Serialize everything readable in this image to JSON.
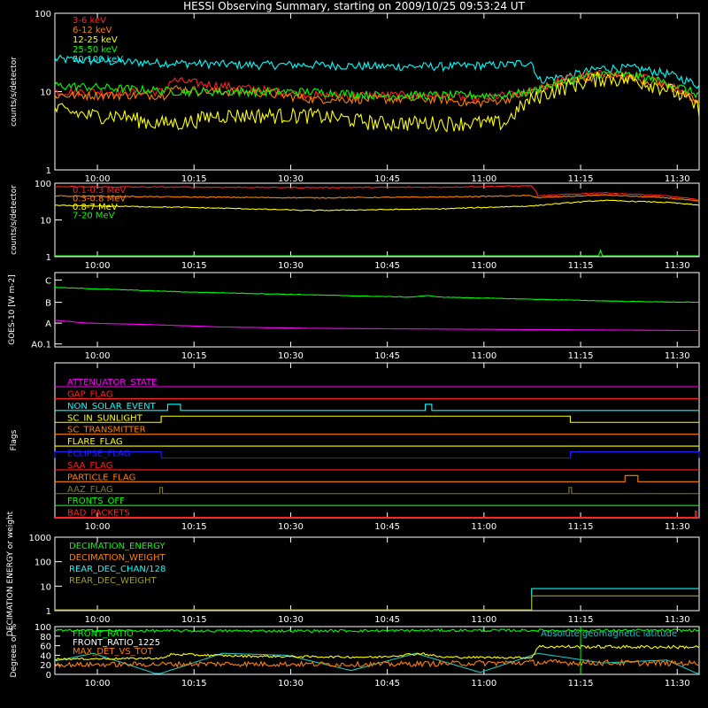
{
  "title": "HESSI Observing Summary, starting on 2009/10/25 09:53:24 UT",
  "time_ticks": [
    "10:00",
    "10:15",
    "10:30",
    "10:45",
    "11:00",
    "11:15",
    "11:30"
  ],
  "chart_data": [
    {
      "type": "line",
      "ylabel": "counts/s/detector",
      "yscale": "log",
      "ylim": [
        1,
        100
      ],
      "yticks": [
        "1",
        "10",
        "100"
      ],
      "x_unit": "minutes since 09:53:24 UT",
      "xlim": [
        0,
        100
      ],
      "series": [
        {
          "name": "3-6 keV",
          "color": "#ff2020",
          "x": [
            0,
            8,
            17,
            18,
            25,
            30,
            40,
            50,
            60,
            65,
            70,
            74,
            80,
            85,
            90,
            95,
            100
          ],
          "y": [
            10,
            10,
            10,
            14,
            12,
            11,
            9,
            9,
            9,
            8,
            9,
            10,
            15,
            17,
            16,
            13,
            7
          ]
        },
        {
          "name": "6-12 keV",
          "color": "#ff8000",
          "x": [
            0,
            8,
            17,
            18,
            25,
            30,
            40,
            50,
            60,
            65,
            70,
            74,
            80,
            85,
            90,
            95,
            100
          ],
          "y": [
            9,
            9,
            9,
            11,
            10,
            10,
            8,
            8,
            8,
            7,
            8,
            10,
            14,
            16,
            15,
            12,
            7
          ]
        },
        {
          "name": "12-25 keV",
          "color": "#ffff00",
          "x": [
            0,
            5,
            10,
            15,
            20,
            25,
            30,
            40,
            50,
            55,
            60,
            65,
            70,
            74,
            80,
            85,
            90,
            95,
            100
          ],
          "y": [
            6,
            5,
            5,
            4,
            4,
            5,
            5,
            5,
            4,
            4,
            4,
            4,
            4,
            8,
            12,
            15,
            14,
            11,
            6
          ]
        },
        {
          "name": "25-50 keV",
          "color": "#00ff00",
          "x": [
            0,
            10,
            20,
            30,
            40,
            50,
            60,
            70,
            74,
            80,
            85,
            90,
            95,
            100
          ],
          "y": [
            12,
            11,
            10,
            10,
            10,
            9,
            9,
            9,
            10,
            14,
            17,
            16,
            13,
            9
          ]
        },
        {
          "name": "50-100 keV",
          "color": "#00ffff",
          "x": [
            0,
            10,
            20,
            30,
            40,
            50,
            60,
            70,
            74,
            75,
            80,
            85,
            90,
            95,
            100
          ],
          "y": [
            26,
            24,
            23,
            22,
            22,
            21,
            21,
            22,
            24,
            14,
            16,
            20,
            20,
            17,
            12
          ]
        }
      ]
    },
    {
      "type": "line",
      "ylabel": "counts/s/detector",
      "yscale": "log",
      "ylim": [
        1,
        100
      ],
      "yticks": [
        "1",
        "10",
        "100"
      ],
      "x_unit": "minutes since 09:53:24 UT",
      "xlim": [
        0,
        100
      ],
      "series": [
        {
          "name": "0.1-0.3 MeV",
          "color": "#ff2020",
          "x": [
            0,
            20,
            40,
            60,
            74,
            75,
            85,
            95,
            100
          ],
          "y": [
            80,
            78,
            76,
            78,
            85,
            45,
            55,
            45,
            35
          ]
        },
        {
          "name": "0.3-0.8 MeV",
          "color": "#ff8000",
          "x": [
            0,
            20,
            40,
            60,
            74,
            75,
            85,
            95,
            100
          ],
          "y": [
            45,
            42,
            40,
            42,
            46,
            40,
            48,
            40,
            32
          ]
        },
        {
          "name": "0.8-7 MeV",
          "color": "#ffff00",
          "x": [
            0,
            20,
            40,
            60,
            74,
            85,
            95,
            100
          ],
          "y": [
            25,
            22,
            18,
            20,
            24,
            34,
            30,
            25
          ]
        },
        {
          "name": "7-20 MeV",
          "color": "#00ff00",
          "x": [
            0,
            84.5,
            84.6,
            84.8,
            85,
            100
          ],
          "y": [
            1,
            1,
            1.8,
            1,
            1,
            1
          ]
        }
      ]
    },
    {
      "type": "line",
      "ylabel": "GOES-10 [W m-2]",
      "yticks": [
        "A0.1",
        "A",
        "B",
        "C"
      ],
      "x_unit": "minutes since 09:53:24 UT",
      "xlim": [
        0,
        100
      ],
      "series": [
        {
          "color": "#00ff00",
          "x": [
            0,
            20,
            40,
            55,
            58,
            60,
            75,
            90,
            100
          ],
          "y": [
            0.8,
            0.74,
            0.7,
            0.67,
            0.69,
            0.67,
            0.64,
            0.61,
            0.6
          ]
        },
        {
          "color": "#ff00ff",
          "x": [
            0,
            5,
            15,
            25,
            40,
            60,
            80,
            100
          ],
          "y": [
            0.36,
            0.32,
            0.3,
            0.27,
            0.25,
            0.24,
            0.23,
            0.22
          ]
        }
      ]
    },
    {
      "type": "flags",
      "ylabel": "Flags",
      "xlim": [
        0,
        100
      ],
      "flags": [
        {
          "name": "ATTENUATOR_STATE",
          "color": "#ff00ff",
          "segments": []
        },
        {
          "name": "GAP_FLAG",
          "color": "#ff2020",
          "segments": []
        },
        {
          "name": "NON_SOLAR_EVENT",
          "color": "#00ffff",
          "segments": [
            [
              17.5,
              19.5
            ],
            [
              57.5,
              58.5
            ]
          ]
        },
        {
          "name": "SC_IN_SUNLIGHT",
          "color": "#ffff00",
          "segments": [
            [
              16.5,
              80
            ]
          ]
        },
        {
          "name": "SC_TRANSMITTER",
          "color": "#ff8000",
          "segments": []
        },
        {
          "name": "FLARE_FLAG",
          "color": "#ffff00",
          "segments": []
        },
        {
          "name": "ECLIPSE_FLAG",
          "color": "#2020ff",
          "segments": [
            [
              0,
              16.5
            ],
            [
              80,
              100
            ]
          ]
        },
        {
          "name": "SAA_FLAG",
          "color": "#ff2020",
          "segments": []
        },
        {
          "name": "PARTICLE_FLAG",
          "color": "#ff8000",
          "segments": [
            [
              88.5,
              90.5
            ]
          ]
        },
        {
          "name": "AAZ_FLAG",
          "color": "#808020",
          "segments": [
            [
              16.3,
              16.7
            ],
            [
              79.8,
              80.2
            ]
          ]
        },
        {
          "name": "FRONTS_OFF",
          "color": "#00ff00",
          "segments": []
        },
        {
          "name": "BAD_PACKETS",
          "color": "#ff2020",
          "segments": [
            [
              99.4,
              99.6
            ]
          ]
        }
      ]
    },
    {
      "type": "line",
      "ylabel": "DECIMATION ENERGY or weight",
      "yscale": "log",
      "ylim": [
        1,
        1000
      ],
      "yticks": [
        "1",
        "10",
        "100",
        "1000"
      ],
      "xlim": [
        0,
        100
      ],
      "series": [
        {
          "name": "DECIMATION_ENERGY",
          "color": "#00ff00",
          "x": [],
          "y": []
        },
        {
          "name": "DECIMATION_WEIGHT",
          "color": "#ff8000",
          "x": [],
          "y": []
        },
        {
          "name": "REAR_DEC_CHAN/128",
          "color": "#00ffff",
          "x": [
            0,
            74,
            74,
            100
          ],
          "y": [
            1,
            1,
            8,
            8
          ]
        },
        {
          "name": "REAR_DEC_WEIGHT",
          "color": "#a0a020",
          "x": [
            0,
            74,
            74,
            100
          ],
          "y": [
            1,
            1,
            4,
            4
          ]
        }
      ]
    },
    {
      "type": "line",
      "ylabel": "Degrees or %",
      "ylim": [
        0,
        100
      ],
      "yticks": [
        "0",
        "20",
        "40",
        "60",
        "80",
        "100"
      ],
      "xlim": [
        0,
        100
      ],
      "series": [
        {
          "name": "FRONT_RATIO",
          "color": "#00ff00",
          "x": [
            0,
            20,
            40,
            60,
            74,
            75,
            100
          ],
          "y": [
            92,
            91,
            91,
            92,
            92,
            92,
            92
          ]
        },
        {
          "name": "FRONT_RATIO_1225",
          "color": "#ffff00",
          "x": [
            0,
            10,
            17,
            18,
            30,
            50,
            57,
            60,
            73,
            74,
            75,
            100
          ],
          "y": [
            32,
            33,
            34,
            42,
            38,
            36,
            44,
            36,
            35,
            35,
            58,
            57
          ]
        },
        {
          "name": "MAX_DET_VS_TOT",
          "color": "#ff8000",
          "x": [
            0,
            25,
            50,
            75,
            100
          ],
          "y": [
            20,
            22,
            21,
            25,
            23
          ]
        },
        {
          "name": "Absolute geomagnetic latitude",
          "color": "#20c0c0",
          "x": [
            0,
            6,
            16,
            26,
            36,
            46,
            56,
            66,
            75,
            85,
            95,
            100
          ],
          "y": [
            28,
            44,
            0,
            44,
            40,
            8,
            44,
            4,
            44,
            24,
            30,
            0
          ]
        }
      ]
    }
  ]
}
